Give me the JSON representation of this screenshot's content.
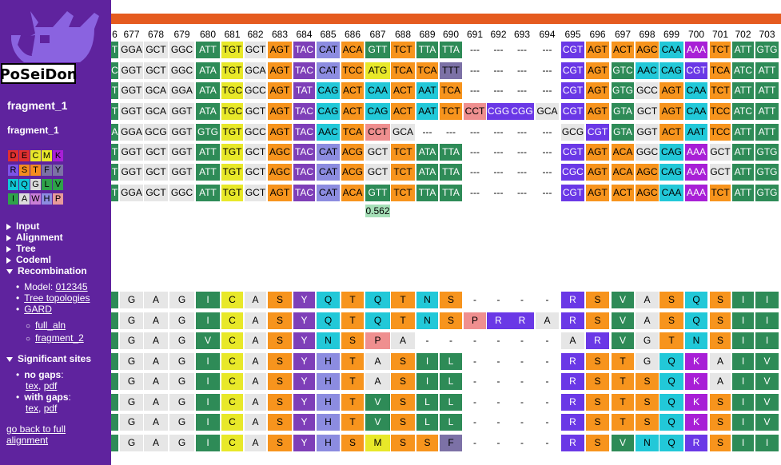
{
  "sidebar": {
    "logo_text": "PoSeiDon",
    "fragment_title": "fragment_1",
    "fragment_sub": "fragment_1",
    "legend": [
      [
        {
          "l": "D",
          "c": "#e0302f"
        },
        {
          "l": "E",
          "c": "#e0302f"
        },
        {
          "l": "C",
          "c": "#e8e829"
        },
        {
          "l": "M",
          "c": "#e8e829"
        },
        {
          "l": "K",
          "c": "#a81fd6"
        }
      ],
      [
        {
          "l": "R",
          "c": "#7d52e6"
        },
        {
          "l": "S",
          "c": "#f48b1f"
        },
        {
          "l": "T",
          "c": "#f48b1f"
        },
        {
          "l": "F",
          "c": "#7c71a6"
        },
        {
          "l": "Y",
          "c": "#7c71a6"
        }
      ],
      [
        {
          "l": "N",
          "c": "#10c8d8"
        },
        {
          "l": "Q",
          "c": "#10c8d8"
        },
        {
          "l": "G",
          "c": "#dcdcdc"
        },
        {
          "l": "L",
          "c": "#2fa24a"
        },
        {
          "l": "V",
          "c": "#2fa24a"
        }
      ],
      [
        {
          "l": "I",
          "c": "#2fa24a"
        },
        {
          "l": "A",
          "c": "#dcdcdc"
        },
        {
          "l": "W",
          "c": "#c97fd6"
        },
        {
          "l": "H",
          "c": "#8c8ce0"
        },
        {
          "l": "P",
          "c": "#e89a9a"
        }
      ]
    ],
    "menu": {
      "input": "Input",
      "alignment": "Alignment",
      "tree": "Tree",
      "codeml": "Codeml",
      "recombination": "Recombination",
      "model_label": "Model: ",
      "model_link": "012345",
      "tree_topologies": "Tree topologies",
      "gard": "GARD",
      "full_aln": "full_aln",
      "fragment_2": "fragment_2",
      "significant_sites": "Significant sites",
      "no_gaps": "no gaps",
      "with_gaps": "with gaps",
      "tex": "tex",
      "pdf": "pdf",
      "comma": ",",
      "colon": ":",
      "go_back": "go back to full alignment"
    }
  },
  "alignment": {
    "positions": [
      "6",
      "677",
      "678",
      "679",
      "680",
      "681",
      "682",
      "683",
      "684",
      "685",
      "686",
      "687",
      "688",
      "689",
      "690",
      "691",
      "692",
      "693",
      "694",
      "695",
      "696",
      "697",
      "698",
      "699",
      "700",
      "701",
      "702",
      "703"
    ],
    "codon_rows": [
      [
        "T",
        "GGA",
        "GCT",
        "GGC",
        "ATT",
        "TGT",
        "GCT",
        "AGT",
        "TAC",
        "CAT",
        "ACA",
        "GTT",
        "TCT",
        "TTA",
        "TTA",
        "---",
        "---",
        "---",
        "---",
        "CGT",
        "AGT",
        "ACT",
        "AGC",
        "CAA",
        "AAA",
        "TCT",
        "ATT",
        "GTG"
      ],
      [
        "C",
        "GGT",
        "GCT",
        "GGC",
        "ATA",
        "TGT",
        "GCA",
        "AGT",
        "TAC",
        "CAT",
        "TCC",
        "ATG",
        "TCA",
        "TCA",
        "TTT",
        "---",
        "---",
        "---",
        "---",
        "CGT",
        "AGT",
        "GTC",
        "AAC",
        "CAG",
        "CGT",
        "TCA",
        "ATC",
        "ATT"
      ],
      [
        "T",
        "GGT",
        "GCA",
        "GGA",
        "ATA",
        "TGC",
        "GCC",
        "AGT",
        "TAT",
        "CAG",
        "ACT",
        "CAA",
        "ACT",
        "AAT",
        "TCA",
        "---",
        "---",
        "---",
        "---",
        "CGT",
        "AGT",
        "GTG",
        "GCC",
        "AGT",
        "CAA",
        "TCT",
        "ATT",
        "ATT"
      ],
      [
        "T",
        "GGT",
        "GCA",
        "GGT",
        "ATA",
        "TGC",
        "GCT",
        "AGT",
        "TAC",
        "CAG",
        "ACT",
        "CAG",
        "ACT",
        "AAT",
        "TCT",
        "CCT",
        "CGG",
        "CGG",
        "GCA",
        "CGT",
        "AGT",
        "GTA",
        "GCT",
        "AGT",
        "CAA",
        "TCC",
        "ATC",
        "ATT"
      ],
      [
        "A",
        "GGA",
        "GCG",
        "GGT",
        "GTG",
        "TGT",
        "GCC",
        "AGT",
        "TAC",
        "AAC",
        "TCA",
        "CCT",
        "GCA",
        "---",
        "---",
        "---",
        "---",
        "---",
        "---",
        "GCG",
        "CGT",
        "GTA",
        "GGT",
        "ACT",
        "AAT",
        "TCC",
        "ATT",
        "ATT"
      ],
      [
        "T",
        "GGT",
        "GCT",
        "GGT",
        "ATT",
        "TGT",
        "GCT",
        "AGC",
        "TAC",
        "CAT",
        "ACG",
        "GCT",
        "TCT",
        "ATA",
        "TTA",
        "---",
        "---",
        "---",
        "---",
        "CGT",
        "AGT",
        "ACA",
        "GGC",
        "CAG",
        "AAA",
        "GCT",
        "ATT",
        "GTG"
      ],
      [
        "T",
        "GGT",
        "GCT",
        "GGT",
        "ATT",
        "TGT",
        "GCT",
        "AGC",
        "TAC",
        "CAT",
        "ACG",
        "GCT",
        "TCT",
        "ATA",
        "TTA",
        "---",
        "---",
        "---",
        "---",
        "CGC",
        "AGT",
        "ACA",
        "AGC",
        "CAG",
        "AAA",
        "GCT",
        "ATT",
        "GTG"
      ],
      [
        "T",
        "GGA",
        "GCT",
        "GGC",
        "ATT",
        "TGT",
        "GCT",
        "AGT",
        "TAC",
        "CAT",
        "ACA",
        "GTT",
        "TCT",
        "TTA",
        "TTA",
        "---",
        "---",
        "---",
        "---",
        "CGT",
        "AGT",
        "ACT",
        "AGC",
        "CAA",
        "AAA",
        "TCT",
        "ATT",
        "GTG"
      ]
    ],
    "score_label": "0.562",
    "aa_rows": [
      [
        "",
        "G",
        "A",
        "G",
        "I",
        "C",
        "A",
        "S",
        "Y",
        "Q",
        "T",
        "Q",
        "T",
        "N",
        "S",
        "-",
        "-",
        "-",
        "-",
        "R",
        "S",
        "V",
        "A",
        "S",
        "Q",
        "S",
        "I",
        "I"
      ],
      [
        "",
        "G",
        "A",
        "G",
        "I",
        "C",
        "A",
        "S",
        "Y",
        "Q",
        "T",
        "Q",
        "T",
        "N",
        "S",
        "P",
        "R",
        "R",
        "A",
        "R",
        "S",
        "V",
        "A",
        "S",
        "Q",
        "S",
        "I",
        "I"
      ],
      [
        "",
        "G",
        "A",
        "G",
        "V",
        "C",
        "A",
        "S",
        "Y",
        "N",
        "S",
        "P",
        "A",
        "-",
        "-",
        "-",
        "-",
        "-",
        "-",
        "A",
        "R",
        "V",
        "G",
        "T",
        "N",
        "S",
        "I",
        "I"
      ],
      [
        "",
        "G",
        "A",
        "G",
        "I",
        "C",
        "A",
        "S",
        "Y",
        "H",
        "T",
        "A",
        "S",
        "I",
        "L",
        "-",
        "-",
        "-",
        "-",
        "R",
        "S",
        "T",
        "G",
        "Q",
        "K",
        "A",
        "I",
        "V"
      ],
      [
        "",
        "G",
        "A",
        "G",
        "I",
        "C",
        "A",
        "S",
        "Y",
        "H",
        "T",
        "A",
        "S",
        "I",
        "L",
        "-",
        "-",
        "-",
        "-",
        "R",
        "S",
        "T",
        "S",
        "Q",
        "K",
        "A",
        "I",
        "V"
      ],
      [
        "",
        "G",
        "A",
        "G",
        "I",
        "C",
        "A",
        "S",
        "Y",
        "H",
        "T",
        "V",
        "S",
        "L",
        "L",
        "-",
        "-",
        "-",
        "-",
        "R",
        "S",
        "T",
        "S",
        "Q",
        "K",
        "S",
        "I",
        "V"
      ],
      [
        "",
        "G",
        "A",
        "G",
        "I",
        "C",
        "A",
        "S",
        "Y",
        "H",
        "T",
        "V",
        "S",
        "L",
        "L",
        "-",
        "-",
        "-",
        "-",
        "R",
        "S",
        "T",
        "S",
        "Q",
        "K",
        "S",
        "I",
        "V"
      ],
      [
        "",
        "G",
        "A",
        "G",
        "I",
        "C",
        "A",
        "S",
        "Y",
        "H",
        "S",
        "M",
        "S",
        "S",
        "F",
        "-",
        "-",
        "-",
        "-",
        "R",
        "S",
        "V",
        "N",
        "Q",
        "R",
        "S",
        "I",
        "I"
      ]
    ],
    "aa_colors": {
      "G": "#e6e6e6",
      "A": "#e6e6e6",
      "I": "#2e8b57",
      "V": "#2e8b57",
      "L": "#2e8b57",
      "C": "#e8e829",
      "M": "#e8e829",
      "S": "#f7941d",
      "T": "#f7941d",
      "Y": "#7e3fb8",
      "F": "#7c71a6",
      "H": "#8c8ce0",
      "Q": "#22c8d8",
      "N": "#22c8d8",
      "K": "#a81fd6",
      "R": "#6a38e6",
      "P": "#ef8f8f",
      "D": "#e0302f",
      "E": "#e0302f",
      "W": "#c97fd6",
      "-": "#ffffff",
      "": "#2e8b57"
    }
  }
}
